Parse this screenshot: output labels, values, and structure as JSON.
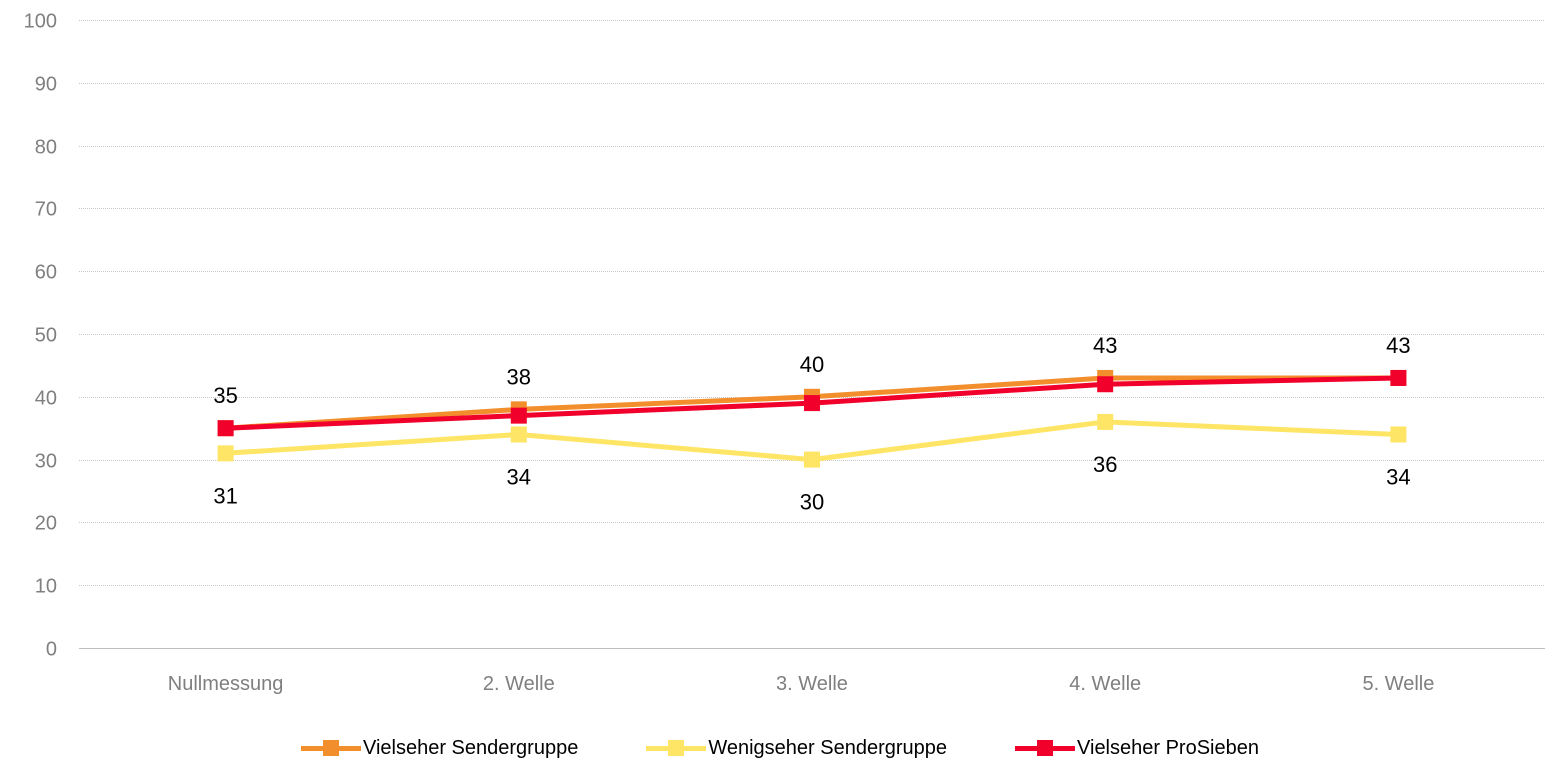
{
  "chart_data": {
    "type": "line",
    "categories": [
      "Nullmessung",
      "2. Welle",
      "3. Welle",
      "4. Welle",
      "5. Welle"
    ],
    "ylim": [
      0,
      100
    ],
    "yticks": [
      "0",
      "10",
      "20",
      "30",
      "40",
      "50",
      "60",
      "70",
      "80",
      "90",
      "100"
    ],
    "grid": true,
    "legend_position": "bottom",
    "series": [
      {
        "name": "Vielseher Sendergruppe",
        "color": "#f28e2b",
        "values": [
          35,
          38,
          40,
          43,
          43
        ],
        "labels": [
          "35",
          "38",
          "40",
          "43",
          "43"
        ],
        "label_position": "above"
      },
      {
        "name": "Wenigseher Sendergruppe",
        "color": "#ffe566",
        "values": [
          31,
          34,
          30,
          36,
          34
        ],
        "labels": [
          "31",
          "34",
          "30",
          "36",
          "34"
        ],
        "label_position": "below"
      },
      {
        "name": "Vielseher ProSieben",
        "color": "#f0002a",
        "values": [
          35,
          37,
          39,
          42,
          43
        ],
        "labels": [],
        "label_position": "none"
      }
    ]
  }
}
